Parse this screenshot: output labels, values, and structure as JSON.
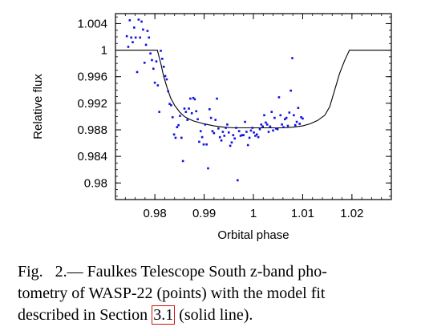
{
  "chart_data": {
    "type": "scatter",
    "xlabel": "Orbital phase",
    "ylabel": "Relative flux",
    "xlim": [
      0.972,
      1.028
    ],
    "ylim": [
      0.9775,
      1.0055
    ],
    "x_ticks": [
      {
        "value": 0.98,
        "label": "0.98"
      },
      {
        "value": 0.99,
        "label": "0.99"
      },
      {
        "value": 1.0,
        "label": "1"
      },
      {
        "value": 1.01,
        "label": "1.01"
      },
      {
        "value": 1.02,
        "label": "1.02"
      }
    ],
    "y_ticks": [
      {
        "value": 1.004,
        "label": "1.004"
      },
      {
        "value": 1.0,
        "label": "1"
      },
      {
        "value": 0.996,
        "label": "0.996"
      },
      {
        "value": 0.992,
        "label": "0.992"
      },
      {
        "value": 0.988,
        "label": "0.988"
      },
      {
        "value": 0.984,
        "label": "0.984"
      },
      {
        "value": 0.98,
        "label": "0.98"
      }
    ],
    "grid": false,
    "series": [
      {
        "kind": "points",
        "color": "#1010e0",
        "points": [
          [
            0.9743,
            1.0021
          ],
          [
            0.9746,
            1.0005
          ],
          [
            0.9749,
            1.0045
          ],
          [
            0.9752,
            1.0019
          ],
          [
            0.9755,
            1.0012
          ],
          [
            0.9758,
            1.0034
          ],
          [
            0.9761,
            1.0019
          ],
          [
            0.9764,
            0.9967
          ],
          [
            0.9767,
            1.0046
          ],
          [
            0.977,
            1.0019
          ],
          [
            0.9773,
            1.0043
          ],
          [
            0.9776,
            1.0031
          ],
          [
            0.9779,
            0.9981
          ],
          [
            0.9782,
            1.0008
          ],
          [
            0.9785,
            1.0029
          ],
          [
            0.9788,
            1.0019
          ],
          [
            0.9791,
            0.9995
          ],
          [
            0.9794,
            0.9985
          ],
          [
            0.9797,
            0.9972
          ],
          [
            0.98,
            0.9951
          ],
          [
            0.9803,
            0.9983
          ],
          [
            0.9806,
            0.9947
          ],
          [
            0.9809,
            0.9907
          ],
          [
            0.9812,
            0.9999
          ],
          [
            0.9815,
            0.9987
          ],
          [
            0.9818,
            0.9975
          ],
          [
            0.9821,
            0.9961
          ],
          [
            0.9824,
            0.9956
          ],
          [
            0.9827,
            0.9938
          ],
          [
            0.983,
            0.9919
          ],
          [
            0.9833,
            0.9917
          ],
          [
            0.9836,
            0.9899
          ],
          [
            0.9839,
            0.9873
          ],
          [
            0.9842,
            0.9868
          ],
          [
            0.9845,
            0.9884
          ],
          [
            0.9848,
            0.9887
          ],
          [
            0.9851,
            0.9901
          ],
          [
            0.9854,
            0.9868
          ],
          [
            0.9857,
            0.9833
          ],
          [
            0.986,
            0.9912
          ],
          [
            0.9863,
            0.9907
          ],
          [
            0.9866,
            0.9895
          ],
          [
            0.9869,
            0.9912
          ],
          [
            0.9872,
            0.9927
          ],
          [
            0.9875,
            0.9905
          ],
          [
            0.9878,
            0.9928
          ],
          [
            0.9881,
            0.9926
          ],
          [
            0.9884,
            0.9908
          ],
          [
            0.9887,
            0.9896
          ],
          [
            0.989,
            0.9862
          ],
          [
            0.9893,
            0.9878
          ],
          [
            0.9896,
            0.9869
          ],
          [
            0.9899,
            0.9858
          ],
          [
            0.9902,
            0.9888
          ],
          [
            0.9905,
            0.9858
          ],
          [
            0.9908,
            0.9822
          ],
          [
            0.9911,
            0.9911
          ],
          [
            0.9914,
            0.9898
          ],
          [
            0.9917,
            0.9878
          ],
          [
            0.992,
            0.9875
          ],
          [
            0.9923,
            0.9895
          ],
          [
            0.9926,
            0.9927
          ],
          [
            0.9929,
            0.9882
          ],
          [
            0.9932,
            0.9869
          ],
          [
            0.9935,
            0.9864
          ],
          [
            0.9938,
            0.9877
          ],
          [
            0.9941,
            0.9871
          ],
          [
            0.9944,
            0.9883
          ],
          [
            0.9947,
            0.9888
          ],
          [
            0.995,
            0.9876
          ],
          [
            0.9953,
            0.9856
          ],
          [
            0.9956,
            0.9861
          ],
          [
            0.9959,
            0.9872
          ],
          [
            0.9962,
            0.9867
          ],
          [
            0.9965,
            0.9883
          ],
          [
            0.9968,
            0.9804
          ],
          [
            0.9971,
            0.9878
          ],
          [
            0.9974,
            0.9871
          ],
          [
            0.9977,
            0.9872
          ],
          [
            0.998,
            0.9872
          ],
          [
            0.9983,
            0.9892
          ],
          [
            0.9986,
            0.9877
          ],
          [
            0.9989,
            0.9857
          ],
          [
            0.9992,
            0.9868
          ],
          [
            0.9995,
            0.9879
          ],
          [
            0.9998,
            0.9883
          ],
          [
            1.0001,
            0.9876
          ],
          [
            1.0004,
            0.9871
          ],
          [
            1.0007,
            0.9873
          ],
          [
            1.001,
            0.9869
          ],
          [
            1.0013,
            0.9881
          ],
          [
            1.0016,
            0.9888
          ],
          [
            1.0019,
            0.9885
          ],
          [
            1.0022,
            0.9902
          ],
          [
            1.0025,
            0.9891
          ],
          [
            1.0028,
            0.9888
          ],
          [
            1.0031,
            0.9877
          ],
          [
            1.0034,
            0.9885
          ],
          [
            1.0037,
            0.9907
          ],
          [
            1.004,
            0.9879
          ],
          [
            1.0043,
            0.9898
          ],
          [
            1.0046,
            0.9882
          ],
          [
            1.0049,
            0.9881
          ],
          [
            1.0052,
            0.9929
          ],
          [
            1.0055,
            0.9902
          ],
          [
            1.0058,
            0.9888
          ],
          [
            1.0061,
            0.9884
          ],
          [
            1.0064,
            0.9896
          ],
          [
            1.0067,
            0.9898
          ],
          [
            1.007,
            0.9886
          ],
          [
            1.0073,
            0.9906
          ],
          [
            1.0076,
            0.9939
          ],
          [
            1.0079,
            0.9988
          ],
          [
            1.0082,
            0.9902
          ],
          [
            1.0085,
            0.9887
          ],
          [
            1.0088,
            0.9892
          ],
          [
            1.0091,
            0.9913
          ],
          [
            1.0094,
            0.9889
          ],
          [
            1.0097,
            0.9899
          ],
          [
            1.01,
            0.9897
          ]
        ]
      },
      {
        "kind": "line",
        "color": "#000000",
        "points": [
          [
            0.972,
            1.0
          ],
          [
            0.9805,
            1.0
          ],
          [
            0.9812,
            0.998
          ],
          [
            0.9818,
            0.996
          ],
          [
            0.9825,
            0.9943
          ],
          [
            0.9832,
            0.9928
          ],
          [
            0.984,
            0.9917
          ],
          [
            0.985,
            0.9907
          ],
          [
            0.986,
            0.99
          ],
          [
            0.987,
            0.9896
          ],
          [
            0.988,
            0.9893
          ],
          [
            0.989,
            0.9891
          ],
          [
            0.99,
            0.9889
          ],
          [
            0.992,
            0.9886
          ],
          [
            0.994,
            0.9884
          ],
          [
            0.996,
            0.9883
          ],
          [
            0.998,
            0.9883
          ],
          [
            1.0,
            0.9883
          ],
          [
            1.002,
            0.9883
          ],
          [
            1.004,
            0.9883
          ],
          [
            1.006,
            0.9883
          ],
          [
            1.008,
            0.9884
          ],
          [
            1.01,
            0.9886
          ],
          [
            1.0115,
            0.9889
          ],
          [
            1.013,
            0.9894
          ],
          [
            1.0145,
            0.9902
          ],
          [
            1.0155,
            0.9915
          ],
          [
            1.0165,
            0.994
          ],
          [
            1.0175,
            0.9965
          ],
          [
            1.0185,
            0.9984
          ],
          [
            1.0195,
            1.0
          ],
          [
            1.028,
            1.0
          ]
        ]
      }
    ]
  },
  "caption": {
    "line1": "Fig.   2.— Faulkes Telescope South z-band pho-",
    "line2": "tometry of WASP-22 (points) with the model fit",
    "line3_before": "described in Section ",
    "line3_ref": "3.1",
    "line3_after": " (solid line)."
  }
}
